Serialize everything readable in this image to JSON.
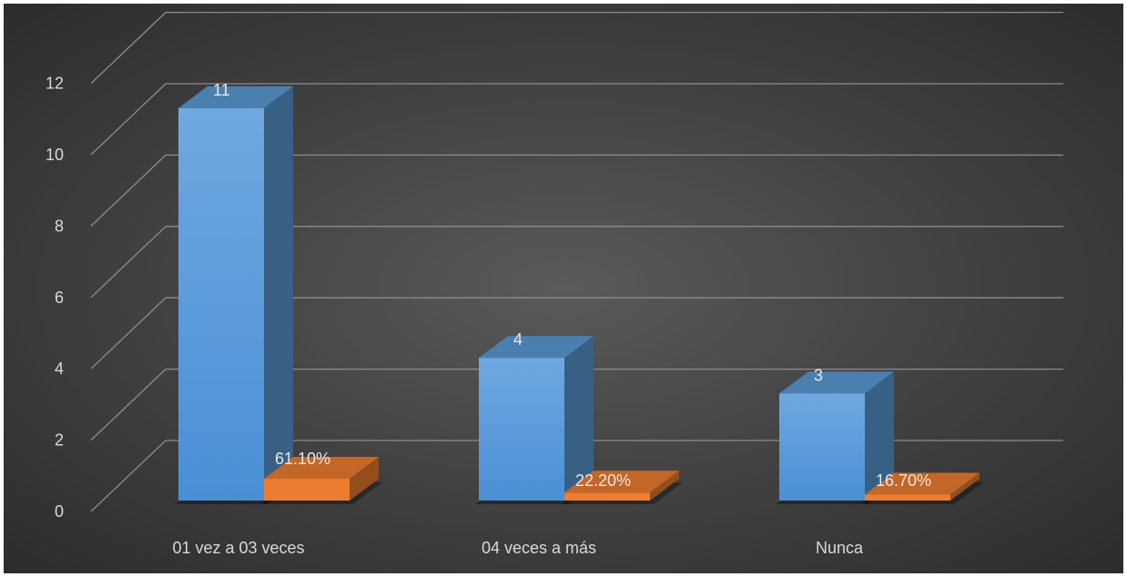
{
  "chart_data": {
    "type": "bar",
    "style": "3d-clustered-column",
    "categories": [
      "01 vez a 03 veces",
      "04 veces a más",
      "Nunca"
    ],
    "series": [
      {
        "values": [
          11,
          4,
          3
        ],
        "labels": [
          "11",
          "4",
          "3"
        ],
        "color": "#5b9bd5"
      },
      {
        "values": [
          0.611,
          0.222,
          0.167
        ],
        "labels": [
          "61.10%",
          "22.20%",
          "16.70%"
        ],
        "color": "#ed7d31"
      }
    ],
    "y_ticks": [
      "0",
      "2",
      "4",
      "6",
      "8",
      "10",
      "12"
    ],
    "ylim": [
      0,
      12
    ],
    "grid": true,
    "legend": "none",
    "background": "#404040"
  }
}
